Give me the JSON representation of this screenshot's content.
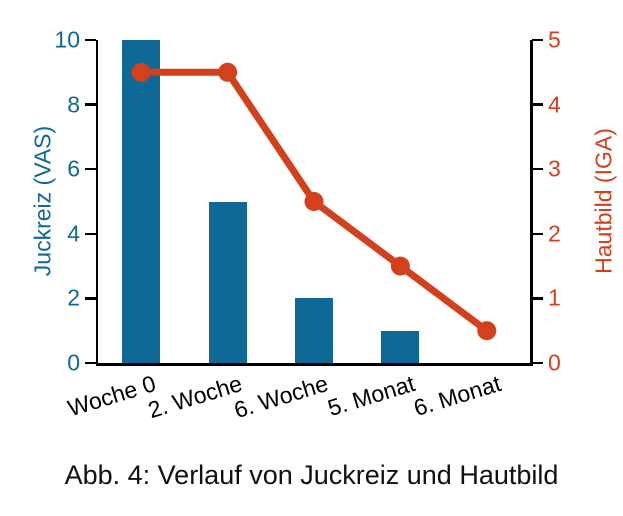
{
  "chart_data": {
    "type": "combo",
    "categories": [
      "Woche 0",
      "2. Woche",
      "6. Woche",
      "5. Monat",
      "6. Monat"
    ],
    "series": [
      {
        "name": "Juckreiz (VAS)",
        "type": "bar",
        "axis": "left",
        "color": "#0E6996",
        "values": [
          10,
          5,
          2,
          1,
          0
        ]
      },
      {
        "name": "Hautbild (IGA)",
        "type": "line",
        "axis": "right",
        "color": "#D2401C",
        "values": [
          4.5,
          4.5,
          2.5,
          1.5,
          0.5
        ]
      }
    ],
    "left_axis": {
      "label": "Juckreiz (VAS)",
      "min": 0,
      "max": 10,
      "ticks": [
        0,
        2,
        4,
        6,
        8,
        10
      ],
      "color": "#0E6996"
    },
    "right_axis": {
      "label": "Hautbild (IGA)",
      "min": 0,
      "max": 5,
      "ticks": [
        0,
        1,
        2,
        3,
        4,
        5
      ],
      "color": "#D2401C"
    },
    "grid": false,
    "legend": "none",
    "axis_color": "#000000",
    "caption": "Abb. 4: Verlauf von Juckreiz und Hautbild"
  }
}
